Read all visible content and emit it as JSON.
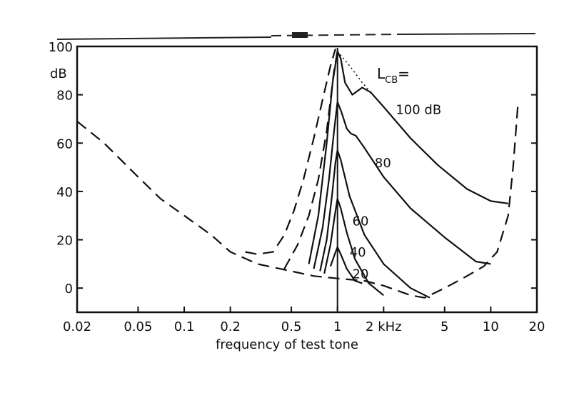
{
  "chart_data": {
    "type": "line",
    "xlabel": "frequency of test tone",
    "x_scale": "log",
    "xlim": [
      0.02,
      20
    ],
    "ylim": [
      -10,
      100
    ],
    "x_ticks": [
      {
        "value": 0.02,
        "label": "0.02"
      },
      {
        "value": 0.05,
        "label": "0.05"
      },
      {
        "value": 0.1,
        "label": "0.1"
      },
      {
        "value": 0.2,
        "label": "0.2"
      },
      {
        "value": 0.5,
        "label": "0.5"
      },
      {
        "value": 1,
        "label": "1"
      },
      {
        "value": 2,
        "label": "2 kHz"
      },
      {
        "value": 5,
        "label": "5"
      },
      {
        "value": 10,
        "label": "10"
      },
      {
        "value": 20,
        "label": "20"
      }
    ],
    "y_ticks": [
      {
        "value": 0,
        "label": "0"
      },
      {
        "value": 20,
        "label": "20"
      },
      {
        "value": 40,
        "label": "40"
      },
      {
        "value": 60,
        "label": "60"
      },
      {
        "value": 80,
        "label": "80"
      },
      {
        "value": 100,
        "label": "100"
      }
    ],
    "y_unit": "dB",
    "annotation": {
      "main": "L",
      "sub": "CB",
      "suffix": "="
    },
    "grid": false,
    "series": [
      {
        "name": "100 dB",
        "style": "solid",
        "points": [
          [
            0.65,
            10
          ],
          [
            0.75,
            30
          ],
          [
            0.85,
            60
          ],
          [
            0.93,
            85
          ],
          [
            1.0,
            98
          ],
          [
            1.05,
            95
          ],
          [
            1.12,
            85
          ],
          [
            1.25,
            80
          ],
          [
            1.45,
            83
          ],
          [
            1.65,
            81
          ],
          [
            2.0,
            75
          ],
          [
            3.0,
            62
          ],
          [
            4.5,
            51
          ],
          [
            7.0,
            41
          ],
          [
            10.0,
            36
          ],
          [
            13.0,
            35
          ]
        ]
      },
      {
        "name": "80",
        "style": "solid",
        "points": [
          [
            0.7,
            8
          ],
          [
            0.8,
            25
          ],
          [
            0.88,
            45
          ],
          [
            0.95,
            65
          ],
          [
            1.0,
            77
          ],
          [
            1.06,
            73
          ],
          [
            1.15,
            66
          ],
          [
            1.22,
            64
          ],
          [
            1.32,
            63
          ],
          [
            1.5,
            58
          ],
          [
            2.0,
            46
          ],
          [
            3.0,
            33
          ],
          [
            5.0,
            21
          ],
          [
            8.0,
            11
          ],
          [
            10.0,
            10
          ]
        ]
      },
      {
        "name": "60",
        "style": "solid",
        "points": [
          [
            0.77,
            7
          ],
          [
            0.85,
            20
          ],
          [
            0.92,
            38
          ],
          [
            0.97,
            52
          ],
          [
            1.0,
            57
          ],
          [
            1.05,
            53
          ],
          [
            1.2,
            38
          ],
          [
            1.5,
            22
          ],
          [
            2.0,
            10
          ],
          [
            3.0,
            0
          ],
          [
            4.0,
            -4
          ]
        ]
      },
      {
        "name": "40",
        "style": "solid",
        "points": [
          [
            0.82,
            6
          ],
          [
            0.9,
            18
          ],
          [
            0.96,
            30
          ],
          [
            1.0,
            37
          ],
          [
            1.05,
            33
          ],
          [
            1.15,
            23
          ],
          [
            1.3,
            12
          ],
          [
            1.6,
            2
          ],
          [
            2.0,
            -3
          ]
        ]
      },
      {
        "name": "20",
        "style": "solid",
        "points": [
          [
            0.9,
            9
          ],
          [
            0.96,
            14
          ],
          [
            1.0,
            17
          ],
          [
            1.05,
            14
          ],
          [
            1.15,
            8
          ],
          [
            1.3,
            3
          ],
          [
            1.45,
            2
          ]
        ]
      },
      {
        "name": "",
        "style": "dashed",
        "points": [
          [
            0.02,
            69
          ],
          [
            0.03,
            60
          ],
          [
            0.05,
            46
          ],
          [
            0.07,
            37
          ],
          [
            0.1,
            30
          ],
          [
            0.15,
            22
          ],
          [
            0.2,
            15
          ],
          [
            0.3,
            10
          ],
          [
            0.5,
            7
          ],
          [
            0.7,
            5
          ],
          [
            1.0,
            4
          ],
          [
            1.5,
            3
          ],
          [
            2.0,
            1
          ],
          [
            3.0,
            -3
          ],
          [
            3.7,
            -4
          ],
          [
            5.0,
            0
          ],
          [
            7.0,
            5
          ],
          [
            9.0,
            9
          ],
          [
            11.0,
            15
          ],
          [
            13.0,
            30
          ],
          [
            14.0,
            50
          ],
          [
            15.0,
            75
          ]
        ]
      },
      {
        "name": "",
        "style": "dashed",
        "points": [
          [
            0.45,
            8
          ],
          [
            0.55,
            18
          ],
          [
            0.65,
            30
          ],
          [
            0.75,
            45
          ],
          [
            0.85,
            65
          ],
          [
            0.95,
            90
          ],
          [
            1.0,
            98
          ],
          [
            1.05,
            95
          ]
        ]
      },
      {
        "name": "",
        "style": "dashed",
        "points": [
          [
            0.25,
            15
          ],
          [
            0.3,
            14
          ],
          [
            0.38,
            15
          ],
          [
            0.45,
            22
          ],
          [
            0.52,
            32
          ],
          [
            0.6,
            45
          ],
          [
            0.7,
            62
          ],
          [
            0.8,
            78
          ],
          [
            0.9,
            92
          ],
          [
            0.97,
            99
          ]
        ]
      },
      {
        "name": "",
        "style": "dotted",
        "points": [
          [
            1.0,
            98
          ],
          [
            1.2,
            92
          ],
          [
            1.45,
            85
          ],
          [
            1.65,
            81
          ]
        ]
      }
    ],
    "curve_labels": [
      {
        "text": "100 dB",
        "x": 2.4,
        "y": 72
      },
      {
        "text": "80",
        "x": 1.75,
        "y": 50
      },
      {
        "text": "60",
        "x": 1.25,
        "y": 26
      },
      {
        "text": "40",
        "x": 1.2,
        "y": 13
      },
      {
        "text": "20",
        "x": 1.25,
        "y": 4
      }
    ]
  }
}
